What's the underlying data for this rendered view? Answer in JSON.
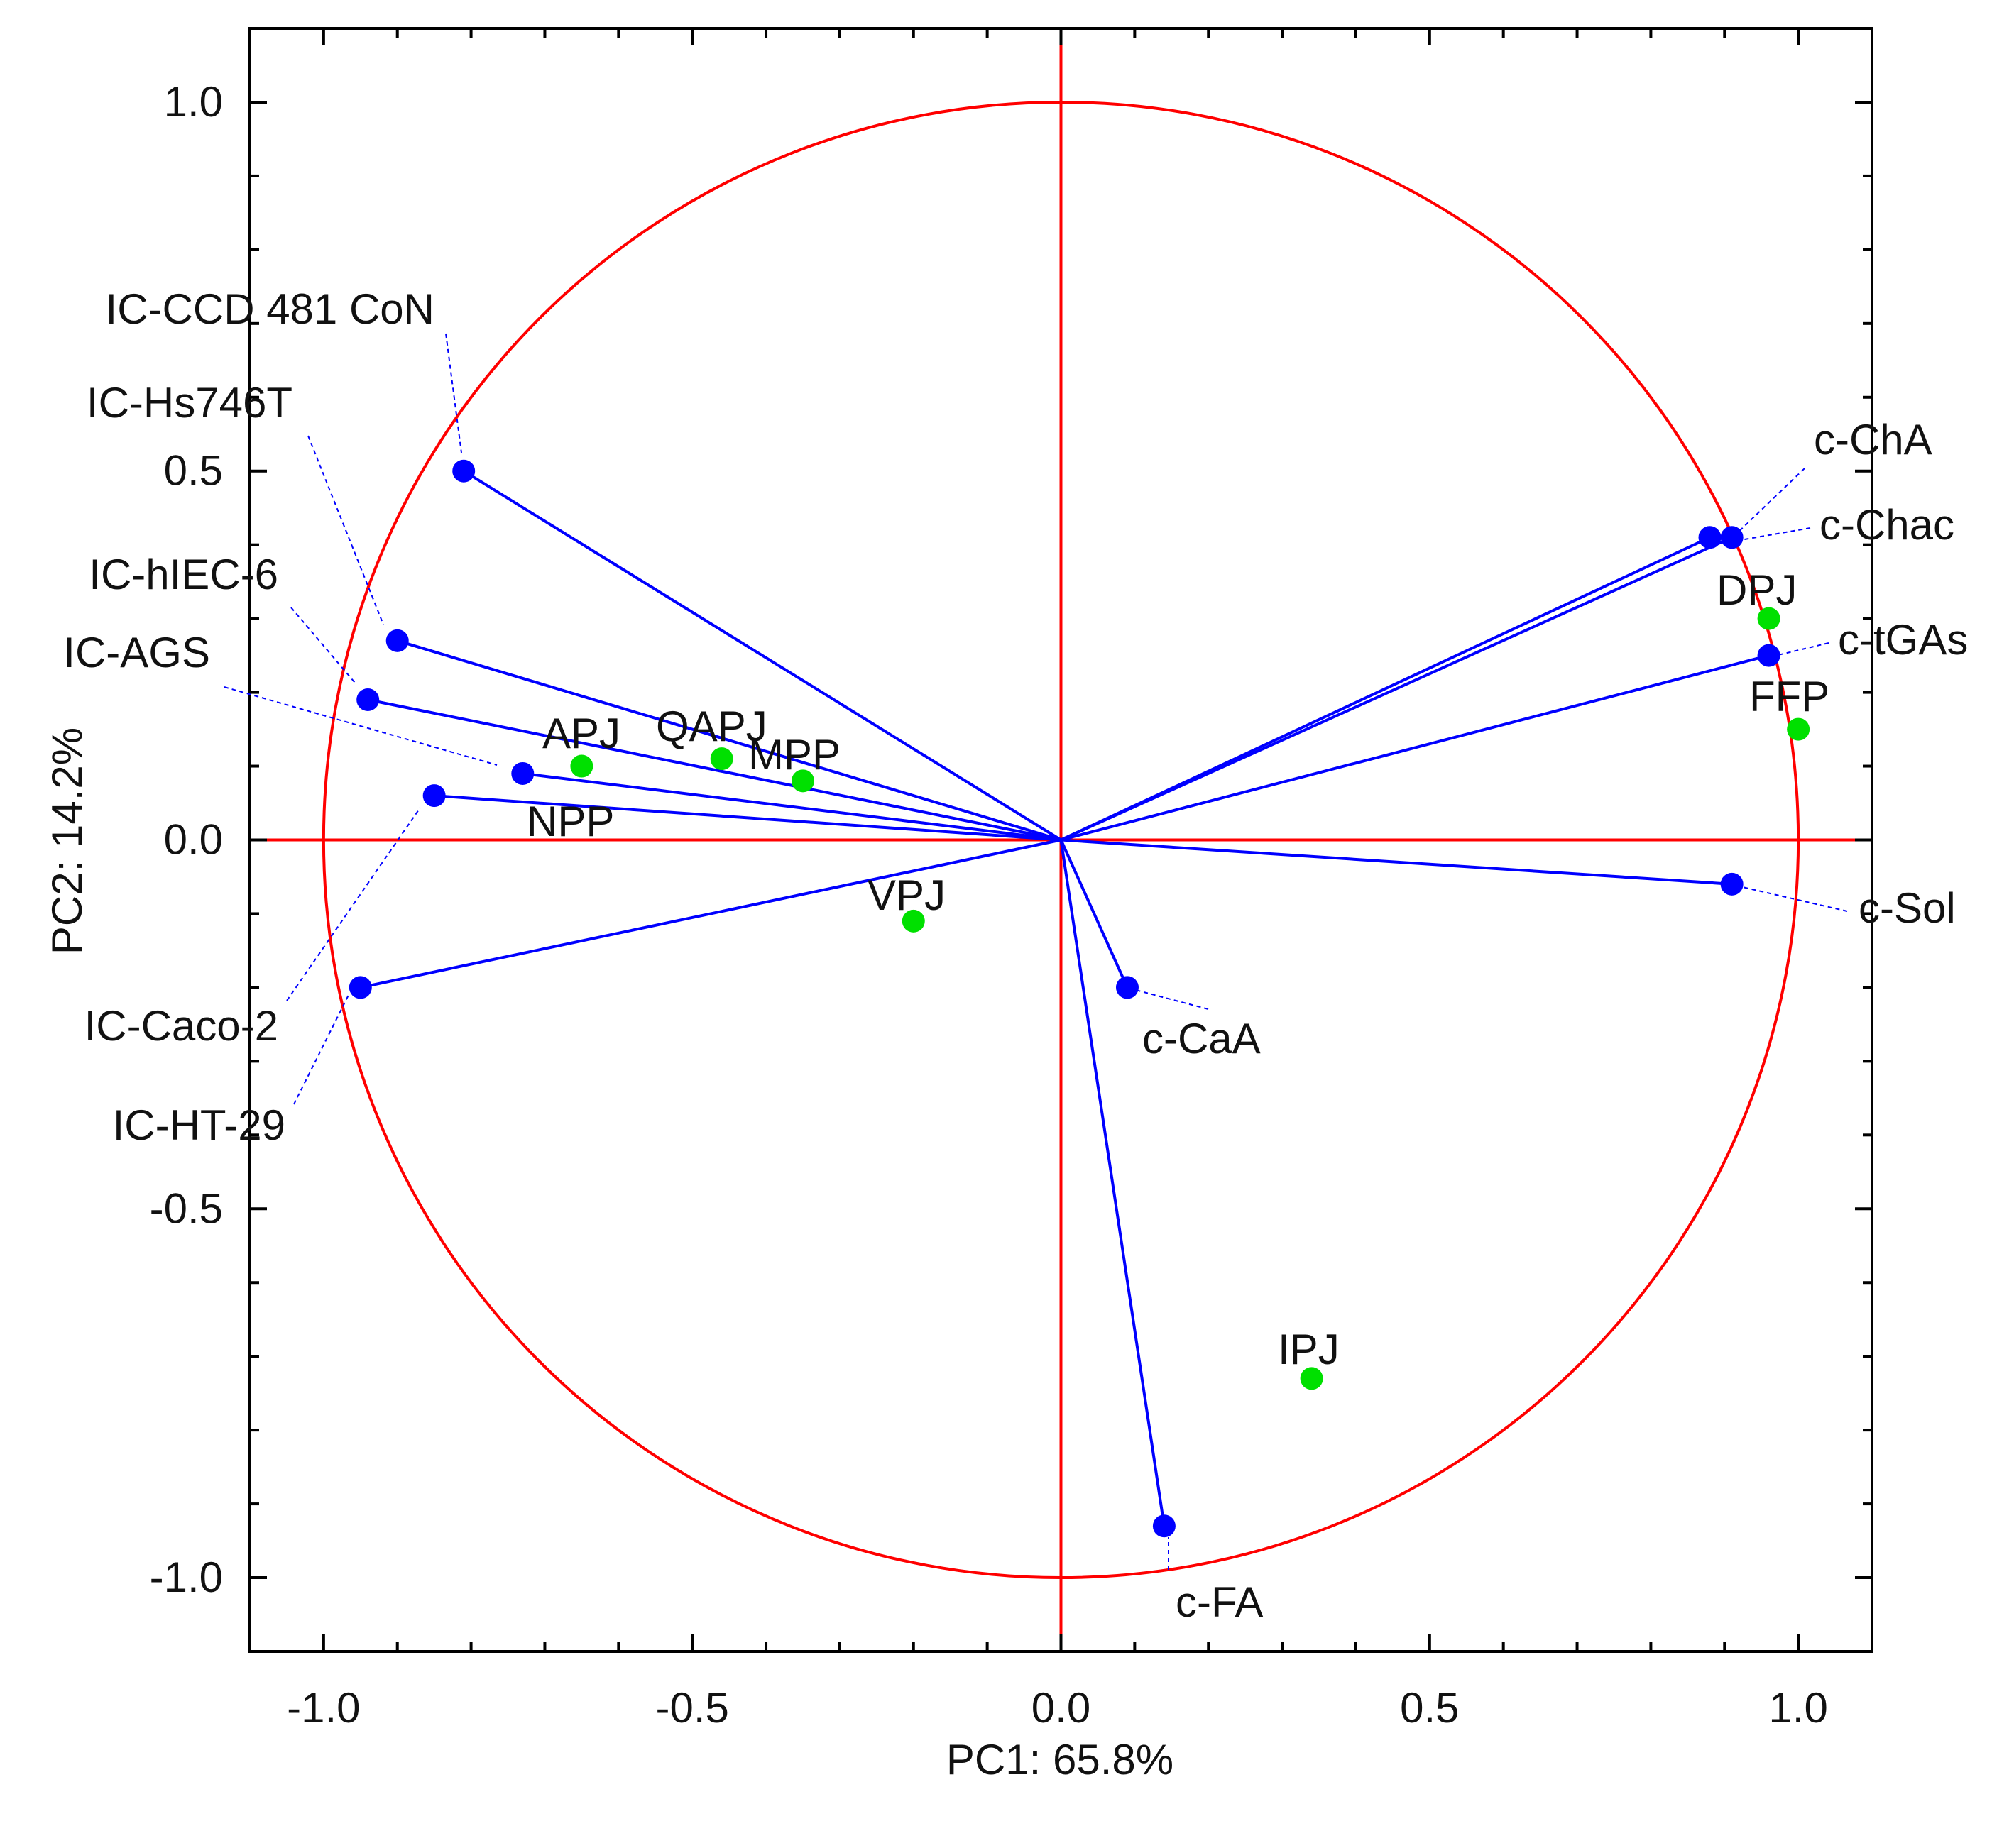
{
  "chart_data": {
    "type": "scatter",
    "subtype": "pca-biplot",
    "xlabel": "PC1: 65.8%",
    "ylabel": "PC2: 14.2%",
    "xlim": [
      -1.1,
      1.1
    ],
    "ylim": [
      -1.1,
      1.1
    ],
    "xticks": [
      -1.0,
      -0.5,
      0.0,
      0.5,
      1.0
    ],
    "yticks": [
      -1.0,
      -0.5,
      0.0,
      0.5,
      1.0
    ],
    "xtick_labels": [
      "-1.0",
      "-0.5",
      "0.0",
      "0.5",
      "1.0"
    ],
    "ytick_labels": [
      "-1.0",
      "-0.5",
      "0.0",
      "0.5",
      "1.0"
    ],
    "unit_circle": true,
    "zero_lines": true,
    "colors": {
      "frame": "#000000",
      "circle": "#ff0000",
      "vectors": "#0000ff",
      "samples": "#00e000",
      "leader": "#0000ff"
    },
    "series": [
      {
        "name": "Variables",
        "marker_color": "#0000ff",
        "draw_vectors": true,
        "points": [
          {
            "label": "IC-CCD 481 CoN",
            "x": -0.81,
            "y": 0.5
          },
          {
            "label": "IC-Hs746T",
            "x": -0.9,
            "y": 0.27
          },
          {
            "label": "IC-hIEC-6",
            "x": -0.94,
            "y": 0.19
          },
          {
            "label": "IC-AGS",
            "x": -0.73,
            "y": 0.09
          },
          {
            "label": "IC-Caco-2",
            "x": -0.85,
            "y": 0.06
          },
          {
            "label": "IC-HT-29",
            "x": -0.95,
            "y": -0.2
          },
          {
            "label": "c-ChA",
            "x": 0.91,
            "y": 0.41
          },
          {
            "label": "c-Chac",
            "x": 0.88,
            "y": 0.41
          },
          {
            "label": "c-tGAs",
            "x": 0.96,
            "y": 0.25
          },
          {
            "label": "c-Sol",
            "x": 0.91,
            "y": -0.06
          },
          {
            "label": "c-CaA",
            "x": 0.09,
            "y": -0.2
          },
          {
            "label": "c-FA",
            "x": 0.14,
            "y": -0.93
          }
        ]
      },
      {
        "name": "Samples",
        "marker_color": "#00e000",
        "draw_vectors": false,
        "points": [
          {
            "label": "APJ",
            "x": -0.65,
            "y": 0.1
          },
          {
            "label": "QAPJ",
            "x": -0.46,
            "y": 0.11
          },
          {
            "label": "MPP",
            "x": -0.35,
            "y": 0.08
          },
          {
            "label": "VPJ",
            "x": -0.2,
            "y": -0.11
          },
          {
            "label": "DPJ",
            "x": 0.96,
            "y": 0.3
          },
          {
            "label": "FFP",
            "x": 1.0,
            "y": 0.15
          },
          {
            "label": "IPJ",
            "x": 0.34,
            "y": -0.73
          }
        ]
      }
    ],
    "annotations": [
      "NPP"
    ]
  }
}
